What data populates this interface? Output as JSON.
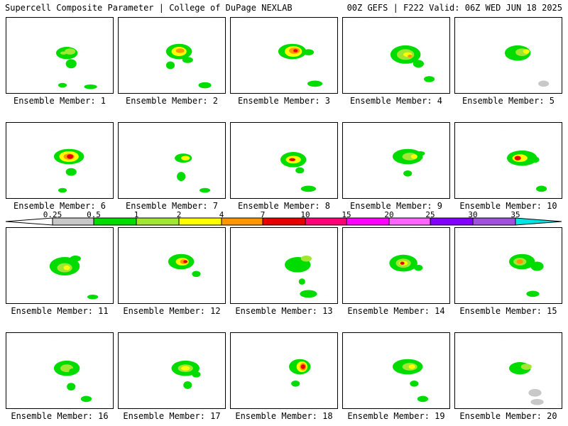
{
  "header": {
    "left": "Supercell Composite Parameter | College of DuPage NEXLAB",
    "right": "00Z GEFS | F222 Valid: 06Z WED JUN 18 2025"
  },
  "colorbar": {
    "ticks": [
      "0.25",
      "0.5",
      "1",
      "2",
      "4",
      "7",
      "10",
      "15",
      "20",
      "25",
      "30",
      "35"
    ],
    "colors": [
      "#c8c8c8",
      "#00dc00",
      "#a0e632",
      "#ffff00",
      "#ff9600",
      "#e60000",
      "#ff0078",
      "#ff00ff",
      "#ff64ff",
      "#8200ff",
      "#a050dc",
      "#00e6e6"
    ]
  },
  "map": {
    "land_color": "#ffffff",
    "border_color": "#000000"
  },
  "members": [
    {
      "label": "Ensemble Member: 1",
      "blobs": [
        [
          0.56,
          0.46,
          0.1,
          0.08,
          1
        ],
        [
          0.59,
          0.44,
          0.05,
          0.04,
          2
        ],
        [
          0.6,
          0.6,
          0.05,
          0.06,
          1
        ],
        [
          0.52,
          0.88,
          0.04,
          0.03,
          1
        ],
        [
          0.78,
          0.9,
          0.06,
          0.03,
          1
        ],
        [
          0.53,
          0.46,
          0.03,
          0.02,
          2
        ]
      ]
    },
    {
      "label": "Ensemble Member: 2",
      "blobs": [
        [
          0.56,
          0.44,
          0.12,
          0.1,
          1
        ],
        [
          0.56,
          0.44,
          0.07,
          0.06,
          3
        ],
        [
          0.57,
          0.43,
          0.04,
          0.03,
          4
        ],
        [
          0.64,
          0.55,
          0.05,
          0.04,
          1
        ],
        [
          0.48,
          0.62,
          0.04,
          0.05,
          1
        ],
        [
          0.8,
          0.88,
          0.06,
          0.04,
          1
        ]
      ]
    },
    {
      "label": "Ensemble Member: 3",
      "blobs": [
        [
          0.57,
          0.44,
          0.13,
          0.1,
          1
        ],
        [
          0.58,
          0.44,
          0.08,
          0.07,
          3
        ],
        [
          0.59,
          0.43,
          0.05,
          0.04,
          4
        ],
        [
          0.6,
          0.43,
          0.02,
          0.02,
          5
        ],
        [
          0.72,
          0.45,
          0.05,
          0.04,
          1
        ],
        [
          0.78,
          0.86,
          0.07,
          0.04,
          1
        ]
      ]
    },
    {
      "label": "Ensemble Member: 4",
      "blobs": [
        [
          0.58,
          0.48,
          0.14,
          0.12,
          1
        ],
        [
          0.58,
          0.48,
          0.08,
          0.07,
          2
        ],
        [
          0.6,
          0.48,
          0.04,
          0.03,
          3
        ],
        [
          0.62,
          0.5,
          0.02,
          0.02,
          4
        ],
        [
          0.7,
          0.6,
          0.05,
          0.05,
          1
        ],
        [
          0.8,
          0.8,
          0.05,
          0.04,
          1
        ]
      ]
    },
    {
      "label": "Ensemble Member: 5",
      "blobs": [
        [
          0.58,
          0.46,
          0.12,
          0.1,
          1
        ],
        [
          0.62,
          0.45,
          0.06,
          0.05,
          2
        ],
        [
          0.66,
          0.44,
          0.03,
          0.03,
          3
        ],
        [
          0.82,
          0.86,
          0.05,
          0.04,
          0
        ]
      ]
    },
    {
      "label": "Ensemble Member: 6",
      "blobs": [
        [
          0.58,
          0.44,
          0.14,
          0.1,
          1
        ],
        [
          0.58,
          0.44,
          0.09,
          0.07,
          3
        ],
        [
          0.58,
          0.44,
          0.05,
          0.04,
          4
        ],
        [
          0.59,
          0.44,
          0.03,
          0.03,
          5
        ],
        [
          0.6,
          0.64,
          0.05,
          0.05,
          1
        ],
        [
          0.52,
          0.88,
          0.04,
          0.03,
          1
        ]
      ]
    },
    {
      "label": "Ensemble Member: 7",
      "blobs": [
        [
          0.6,
          0.46,
          0.08,
          0.06,
          1
        ],
        [
          0.62,
          0.46,
          0.04,
          0.03,
          3
        ],
        [
          0.58,
          0.7,
          0.04,
          0.06,
          1
        ],
        [
          0.8,
          0.88,
          0.05,
          0.03,
          1
        ]
      ]
    },
    {
      "label": "Ensemble Member: 8",
      "blobs": [
        [
          0.58,
          0.48,
          0.12,
          0.1,
          1
        ],
        [
          0.58,
          0.48,
          0.07,
          0.05,
          3
        ],
        [
          0.57,
          0.48,
          0.03,
          0.02,
          5
        ],
        [
          0.64,
          0.62,
          0.04,
          0.04,
          1
        ],
        [
          0.72,
          0.86,
          0.07,
          0.04,
          1
        ]
      ]
    },
    {
      "label": "Ensemble Member: 9",
      "blobs": [
        [
          0.6,
          0.44,
          0.14,
          0.1,
          1
        ],
        [
          0.62,
          0.44,
          0.07,
          0.05,
          2
        ],
        [
          0.66,
          0.44,
          0.03,
          0.03,
          3
        ],
        [
          0.72,
          0.4,
          0.04,
          0.03,
          1
        ],
        [
          0.6,
          0.66,
          0.04,
          0.04,
          1
        ]
      ]
    },
    {
      "label": "Ensemble Member: 10",
      "blobs": [
        [
          0.62,
          0.46,
          0.14,
          0.1,
          1
        ],
        [
          0.6,
          0.46,
          0.07,
          0.05,
          3
        ],
        [
          0.58,
          0.46,
          0.03,
          0.03,
          5
        ],
        [
          0.74,
          0.48,
          0.04,
          0.04,
          1
        ],
        [
          0.8,
          0.86,
          0.05,
          0.04,
          1
        ]
      ]
    },
    {
      "label": "Ensemble Member: 11",
      "blobs": [
        [
          0.54,
          0.5,
          0.14,
          0.12,
          1
        ],
        [
          0.54,
          0.52,
          0.07,
          0.06,
          2
        ],
        [
          0.56,
          0.52,
          0.03,
          0.03,
          3
        ],
        [
          0.64,
          0.4,
          0.05,
          0.04,
          1
        ],
        [
          0.8,
          0.9,
          0.05,
          0.03,
          1
        ]
      ]
    },
    {
      "label": "Ensemble Member: 12",
      "blobs": [
        [
          0.58,
          0.44,
          0.12,
          0.1,
          1
        ],
        [
          0.59,
          0.44,
          0.06,
          0.05,
          3
        ],
        [
          0.6,
          0.44,
          0.03,
          0.03,
          4
        ],
        [
          0.62,
          0.44,
          0.02,
          0.02,
          5
        ],
        [
          0.72,
          0.6,
          0.04,
          0.04,
          1
        ]
      ]
    },
    {
      "label": "Ensemble Member: 13",
      "blobs": [
        [
          0.62,
          0.48,
          0.12,
          0.1,
          1
        ],
        [
          0.7,
          0.4,
          0.05,
          0.04,
          2
        ],
        [
          0.72,
          0.86,
          0.08,
          0.05,
          1
        ],
        [
          0.66,
          0.7,
          0.03,
          0.04,
          1
        ]
      ]
    },
    {
      "label": "Ensemble Member: 14",
      "blobs": [
        [
          0.56,
          0.46,
          0.13,
          0.11,
          1
        ],
        [
          0.56,
          0.46,
          0.07,
          0.06,
          2
        ],
        [
          0.56,
          0.46,
          0.04,
          0.03,
          3
        ],
        [
          0.55,
          0.46,
          0.02,
          0.02,
          5
        ],
        [
          0.7,
          0.52,
          0.04,
          0.04,
          1
        ]
      ]
    },
    {
      "label": "Ensemble Member: 15",
      "blobs": [
        [
          0.62,
          0.44,
          0.12,
          0.1,
          1
        ],
        [
          0.6,
          0.44,
          0.06,
          0.05,
          2
        ],
        [
          0.6,
          0.44,
          0.03,
          0.03,
          4
        ],
        [
          0.76,
          0.5,
          0.06,
          0.06,
          1
        ],
        [
          0.72,
          0.86,
          0.06,
          0.04,
          1
        ]
      ]
    },
    {
      "label": "Ensemble Member: 16",
      "blobs": [
        [
          0.56,
          0.46,
          0.12,
          0.1,
          1
        ],
        [
          0.56,
          0.46,
          0.06,
          0.05,
          2
        ],
        [
          0.62,
          0.5,
          0.04,
          0.04,
          1
        ],
        [
          0.6,
          0.7,
          0.04,
          0.05,
          1
        ],
        [
          0.74,
          0.86,
          0.05,
          0.04,
          1
        ]
      ]
    },
    {
      "label": "Ensemble Member: 17",
      "blobs": [
        [
          0.62,
          0.46,
          0.13,
          0.1,
          1
        ],
        [
          0.62,
          0.46,
          0.07,
          0.05,
          2
        ],
        [
          0.62,
          0.46,
          0.04,
          0.03,
          3
        ],
        [
          0.72,
          0.54,
          0.04,
          0.04,
          1
        ],
        [
          0.64,
          0.68,
          0.04,
          0.05,
          1
        ]
      ]
    },
    {
      "label": "Ensemble Member: 18",
      "blobs": [
        [
          0.64,
          0.44,
          0.1,
          0.1,
          1
        ],
        [
          0.66,
          0.44,
          0.05,
          0.07,
          3
        ],
        [
          0.67,
          0.44,
          0.03,
          0.05,
          4
        ],
        [
          0.67,
          0.44,
          0.02,
          0.03,
          5
        ],
        [
          0.6,
          0.66,
          0.04,
          0.04,
          1
        ]
      ]
    },
    {
      "label": "Ensemble Member: 19",
      "blobs": [
        [
          0.6,
          0.44,
          0.14,
          0.1,
          1
        ],
        [
          0.62,
          0.44,
          0.07,
          0.05,
          2
        ],
        [
          0.64,
          0.44,
          0.03,
          0.03,
          3
        ],
        [
          0.66,
          0.66,
          0.04,
          0.04,
          1
        ],
        [
          0.74,
          0.86,
          0.05,
          0.04,
          1
        ]
      ]
    },
    {
      "label": "Ensemble Member: 20",
      "blobs": [
        [
          0.6,
          0.46,
          0.1,
          0.08,
          1
        ],
        [
          0.66,
          0.44,
          0.05,
          0.04,
          2
        ],
        [
          0.74,
          0.78,
          0.06,
          0.05,
          0
        ],
        [
          0.76,
          0.9,
          0.06,
          0.04,
          0
        ]
      ]
    }
  ]
}
